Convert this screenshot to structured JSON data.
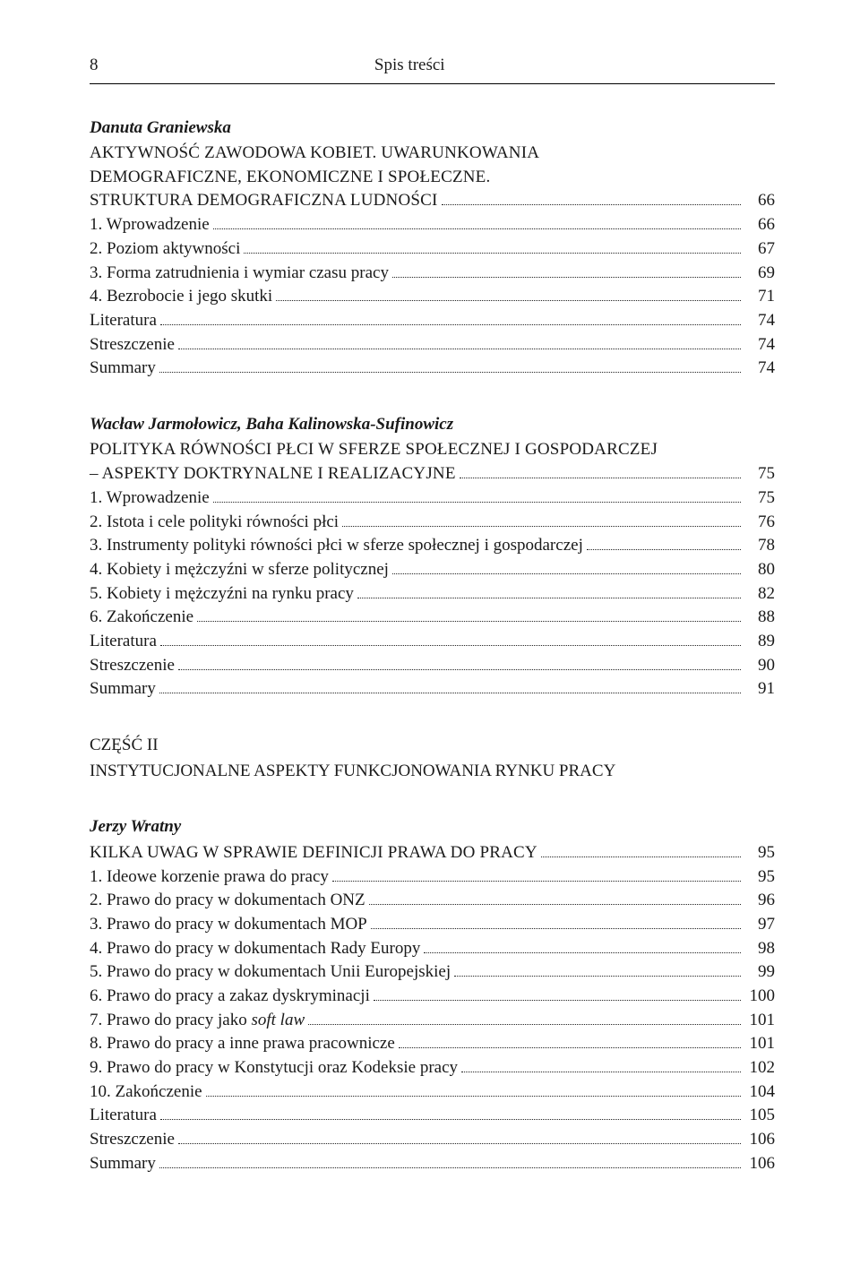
{
  "colors": {
    "background": "#ffffff",
    "text": "#1a1a1a",
    "rule": "#000000",
    "dots": "#222222"
  },
  "typography": {
    "family": "Times New Roman",
    "base_size_pt": 14,
    "line_height": 1.4
  },
  "page_number": "8",
  "running_title": "Spis treści",
  "sections": [
    {
      "author": "Danuta Graniewska",
      "title_lines": [
        "AKTYWNOŚĆ ZAWODOWA KOBIET. UWARUNKOWANIA",
        "DEMOGRAFICZNE, EKONOMICZNE I SPOŁECZNE."
      ],
      "title_with_page": {
        "label": "STRUKTURA DEMOGRAFICZNA LUDNOŚCI",
        "page": "66"
      },
      "entries": [
        {
          "label": "1. Wprowadzenie",
          "page": "66"
        },
        {
          "label": "2. Poziom aktywności",
          "page": "67"
        },
        {
          "label": "3. Forma zatrudnienia i wymiar czasu pracy",
          "page": "69"
        },
        {
          "label": "4. Bezrobocie i jego skutki",
          "page": "71"
        },
        {
          "label": "Literatura",
          "page": "74"
        },
        {
          "label": "Streszczenie",
          "page": "74"
        },
        {
          "label": "Summary",
          "page": "74"
        }
      ]
    },
    {
      "author": "Wacław Jarmołowicz, Baha Kalinowska-Sufinowicz",
      "title_lines": [
        "POLITYKA RÓWNOŚCI PŁCI W SFERZE SPOŁECZNEJ I GOSPODARCZEJ"
      ],
      "title_with_page": {
        "label": "– ASPEKTY DOKTRYNALNE I REALIZACYJNE",
        "page": "75"
      },
      "entries": [
        {
          "label": "1. Wprowadzenie",
          "page": "75"
        },
        {
          "label": "2. Istota i cele polityki równości płci",
          "page": "76"
        },
        {
          "label": "3. Instrumenty polityki równości płci w sferze społecznej i gospodarczej",
          "page": "78"
        },
        {
          "label": "4. Kobiety i mężczyźni w sferze politycznej",
          "page": "80"
        },
        {
          "label": "5. Kobiety i mężczyźni na rynku pracy",
          "page": "82"
        },
        {
          "label": "6. Zakończenie",
          "page": "88"
        },
        {
          "label": "Literatura",
          "page": "89"
        },
        {
          "label": "Streszczenie",
          "page": "90"
        },
        {
          "label": "Summary",
          "page": "91"
        }
      ]
    }
  ],
  "part": {
    "heading": "CZĘŚĆ II",
    "subtitle": "INSTYTUCJONALNE ASPEKTY FUNKCJONOWANIA RYNKU PRACY"
  },
  "sections_after_part": [
    {
      "author": "Jerzy Wratny",
      "title_with_page": {
        "label": "KILKA UWAG W SPRAWIE DEFINICJI PRAWA DO PRACY",
        "page": "95"
      },
      "entries": [
        {
          "label": "1. Ideowe korzenie prawa do pracy",
          "page": "95"
        },
        {
          "label": "2. Prawo do pracy w dokumentach ONZ",
          "page": "96"
        },
        {
          "label": "3. Prawo do pracy w dokumentach MOP",
          "page": "97"
        },
        {
          "label": "4. Prawo do pracy w dokumentach Rady Europy",
          "page": "98"
        },
        {
          "label": "5. Prawo do pracy w dokumentach Unii Europejskiej",
          "page": "99"
        },
        {
          "label": "6. Prawo do pracy a zakaz dyskryminacji",
          "page": "100"
        },
        {
          "label": "7. Prawo do pracy jako ",
          "italic_suffix": "soft law",
          "page": "101"
        },
        {
          "label": "8. Prawo do pracy a inne prawa pracownicze",
          "page": "101"
        },
        {
          "label": "9. Prawo do pracy w Konstytucji oraz Kodeksie pracy",
          "page": "102"
        },
        {
          "label": "10. Zakończenie",
          "page": "104"
        },
        {
          "label": "Literatura",
          "page": "105"
        },
        {
          "label": "Streszczenie",
          "page": "106"
        },
        {
          "label": "Summary",
          "page": "106"
        }
      ]
    }
  ]
}
